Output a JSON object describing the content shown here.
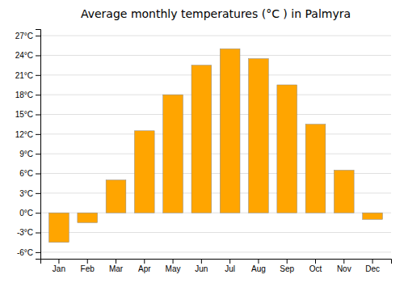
{
  "chart_data": {
    "type": "bar",
    "title": "Average monthly temperatures (°C ) in Palmyra",
    "categories": [
      "Jan",
      "Feb",
      "Mar",
      "Apr",
      "May",
      "Jun",
      "Jul",
      "Aug",
      "Sep",
      "Oct",
      "Nov",
      "Dec"
    ],
    "values": [
      -4.5,
      -1.5,
      5.0,
      12.5,
      18.0,
      22.5,
      25.0,
      23.5,
      19.5,
      13.5,
      6.5,
      -1.0
    ],
    "color": "#FFA500",
    "ylim": [
      -7,
      28
    ],
    "yticks": [
      {
        "value": -6,
        "label": "-6°C"
      },
      {
        "value": -3,
        "label": "-3°C"
      },
      {
        "value": 0,
        "label": "0°C"
      },
      {
        "value": 3,
        "label": "3°C"
      },
      {
        "value": 6,
        "label": "6°C"
      },
      {
        "value": 9,
        "label": "9°C"
      },
      {
        "value": 12,
        "label": "12°C"
      },
      {
        "value": 15,
        "label": "15°C"
      },
      {
        "value": 18,
        "label": "18°C"
      },
      {
        "value": 21,
        "label": "21°C"
      },
      {
        "value": 24,
        "label": "24°C"
      },
      {
        "value": 27,
        "label": "27°C"
      }
    ],
    "grid": true
  }
}
